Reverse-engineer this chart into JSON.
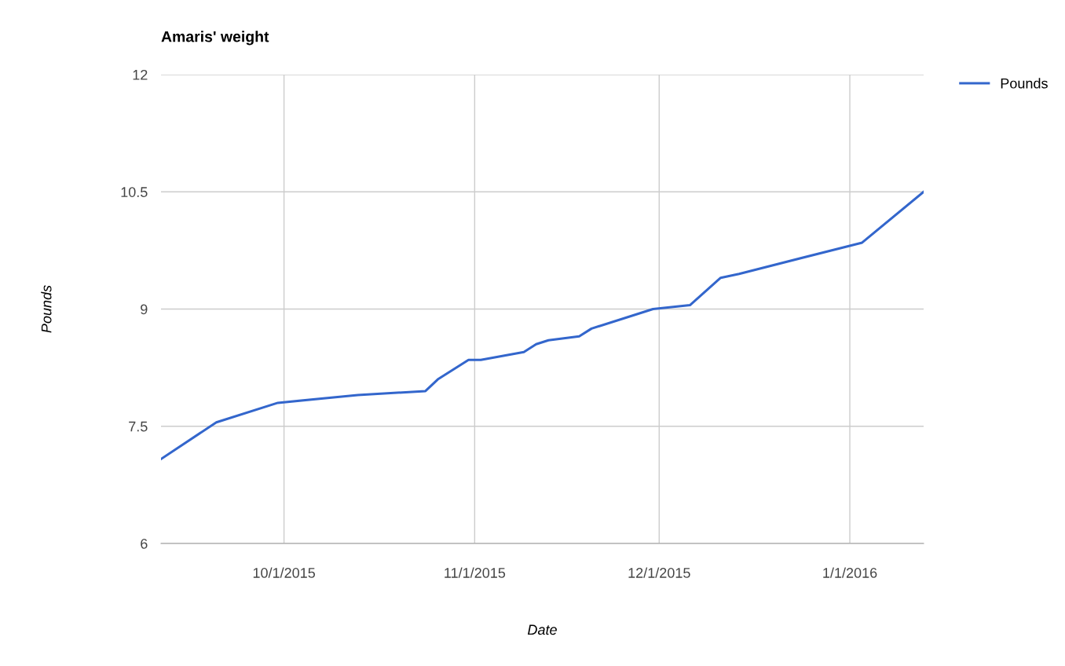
{
  "chart_data": {
    "type": "line",
    "title": "Amaris' weight",
    "xlabel": "Date",
    "ylabel": "Pounds",
    "x": [
      "2015-09-11",
      "2015-09-20",
      "2015-09-30",
      "2015-10-13",
      "2015-10-24",
      "2015-10-26",
      "2015-10-31",
      "2015-11-02",
      "2015-11-09",
      "2015-11-11",
      "2015-11-13",
      "2015-11-18",
      "2015-11-20",
      "2015-11-30",
      "2015-12-06",
      "2015-12-11",
      "2015-12-14",
      "2016-01-03",
      "2016-01-13"
    ],
    "series": [
      {
        "name": "Pounds",
        "color": "#3366cc",
        "values": [
          7.08,
          7.55,
          7.8,
          7.9,
          7.95,
          8.1,
          8.35,
          8.35,
          8.45,
          8.55,
          8.6,
          8.65,
          8.75,
          9.0,
          9.05,
          9.4,
          9.45,
          9.85,
          10.5
        ]
      }
    ],
    "xlim": [
      "2015-09-11",
      "2016-01-13"
    ],
    "xticks": [
      {
        "value": "2015-10-01",
        "label": "10/1/2015"
      },
      {
        "value": "2015-11-01",
        "label": "11/1/2015"
      },
      {
        "value": "2015-12-01",
        "label": "12/1/2015"
      },
      {
        "value": "2016-01-01",
        "label": "1/1/2016"
      }
    ],
    "ylim": [
      6,
      12
    ],
    "yticks": [
      6,
      7.5,
      9,
      10.5,
      12
    ],
    "grid": true,
    "legend": "top right",
    "marker": "none",
    "line_style": "solid"
  }
}
